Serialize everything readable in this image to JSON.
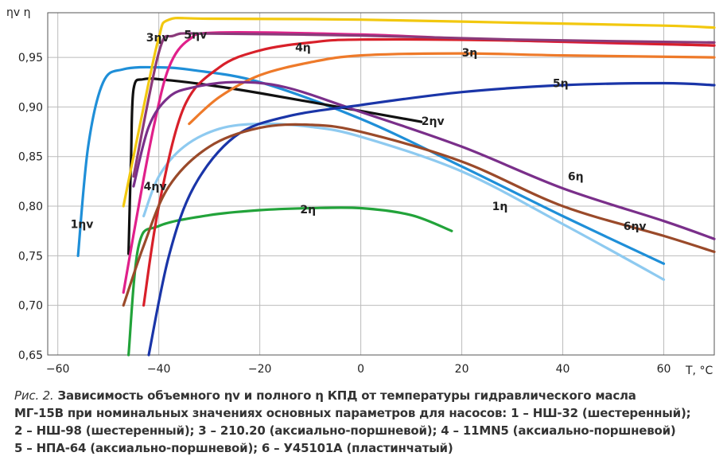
{
  "chart_data": {
    "type": "line",
    "ylabel": "ηv η",
    "xlabel": "T, °C",
    "xlim": [
      -62,
      70
    ],
    "ylim": [
      0.65,
      0.995
    ],
    "xticks": [
      -60,
      -40,
      -20,
      0,
      20,
      40,
      60
    ],
    "xtick_labels": [
      "−60",
      "−40",
      "−20",
      "0",
      "20",
      "40",
      "60"
    ],
    "yticks": [
      0.65,
      0.7,
      0.75,
      0.8,
      0.85,
      0.9,
      0.95
    ],
    "ytick_labels": [
      "0,65",
      "0,70",
      "0,75",
      "0,80",
      "0,85",
      "0,90",
      "0,95"
    ],
    "grid": true,
    "series": [
      {
        "name": "1ηv",
        "color": "#1f8fd8",
        "points": [
          [
            -56,
            0.75
          ],
          [
            -54,
            0.86
          ],
          [
            -51,
            0.925
          ],
          [
            -47,
            0.938
          ],
          [
            -40,
            0.94
          ],
          [
            -33,
            0.937
          ],
          [
            -20,
            0.925
          ],
          [
            0,
            0.888
          ],
          [
            20,
            0.84
          ],
          [
            40,
            0.79
          ],
          [
            60,
            0.742
          ]
        ]
      },
      {
        "name": "1η",
        "color": "#8ecaf0",
        "points": [
          [
            -43,
            0.79
          ],
          [
            -40,
            0.83
          ],
          [
            -35,
            0.86
          ],
          [
            -28,
            0.878
          ],
          [
            -20,
            0.883
          ],
          [
            -10,
            0.88
          ],
          [
            0,
            0.87
          ],
          [
            20,
            0.835
          ],
          [
            40,
            0.782
          ],
          [
            60,
            0.726
          ]
        ]
      },
      {
        "name": "2ηv",
        "color": "#111111",
        "points": [
          [
            -46,
            0.752
          ],
          [
            -45.5,
            0.85
          ],
          [
            -45,
            0.918
          ],
          [
            -43,
            0.928
          ],
          [
            -38,
            0.927
          ],
          [
            -30,
            0.922
          ],
          [
            -20,
            0.914
          ],
          [
            0,
            0.896
          ],
          [
            12,
            0.885
          ]
        ]
      },
      {
        "name": "2η",
        "color": "#22a33a",
        "points": [
          [
            -46,
            0.65
          ],
          [
            -44,
            0.76
          ],
          [
            -40,
            0.78
          ],
          [
            -30,
            0.791
          ],
          [
            -20,
            0.796
          ],
          [
            -10,
            0.798
          ],
          [
            0,
            0.798
          ],
          [
            10,
            0.791
          ],
          [
            18,
            0.775
          ]
        ]
      },
      {
        "name": "3ηv",
        "color": "#f2c80f",
        "points": [
          [
            -47,
            0.8
          ],
          [
            -43,
            0.9
          ],
          [
            -40,
            0.97
          ],
          [
            -38,
            0.988
          ],
          [
            -30,
            0.989
          ],
          [
            0,
            0.988
          ],
          [
            30,
            0.985
          ],
          [
            60,
            0.982
          ],
          [
            70,
            0.98
          ]
        ]
      },
      {
        "name": "3η",
        "color": "#ee7a2a",
        "points": [
          [
            -34,
            0.883
          ],
          [
            -28,
            0.91
          ],
          [
            -20,
            0.932
          ],
          [
            -10,
            0.945
          ],
          [
            0,
            0.952
          ],
          [
            20,
            0.954
          ],
          [
            40,
            0.952
          ],
          [
            70,
            0.95
          ]
        ]
      },
      {
        "name": "4ηv",
        "color": "#e0208a",
        "points": [
          [
            -47,
            0.713
          ],
          [
            -44,
            0.8
          ],
          [
            -41,
            0.88
          ],
          [
            -38,
            0.94
          ],
          [
            -34,
            0.968
          ],
          [
            -28,
            0.975
          ],
          [
            0,
            0.973
          ],
          [
            30,
            0.967
          ],
          [
            70,
            0.962
          ]
        ]
      },
      {
        "name": "4η",
        "color": "#d8202a",
        "points": [
          [
            -43,
            0.7
          ],
          [
            -40,
            0.8
          ],
          [
            -35,
            0.9
          ],
          [
            -28,
            0.94
          ],
          [
            -20,
            0.957
          ],
          [
            -10,
            0.965
          ],
          [
            0,
            0.968
          ],
          [
            30,
            0.967
          ],
          [
            70,
            0.962
          ]
        ]
      },
      {
        "name": "5ηv",
        "color": "#7a2f8a",
        "points": [
          [
            -45,
            0.82
          ],
          [
            -42,
            0.88
          ],
          [
            -38,
            0.91
          ],
          [
            -33,
            0.92
          ],
          [
            -25,
            0.925
          ],
          [
            -15,
            0.92
          ],
          [
            0,
            0.895
          ],
          [
            20,
            0.86
          ],
          [
            40,
            0.818
          ],
          [
            60,
            0.785
          ],
          [
            70,
            0.767
          ]
        ]
      },
      {
        "name": "5η",
        "color": "#1a35a8",
        "points": [
          [
            -42,
            0.65
          ],
          [
            -38,
            0.75
          ],
          [
            -33,
            0.82
          ],
          [
            -25,
            0.87
          ],
          [
            -15,
            0.89
          ],
          [
            0,
            0.902
          ],
          [
            20,
            0.915
          ],
          [
            40,
            0.922
          ],
          [
            60,
            0.924
          ],
          [
            70,
            0.922
          ]
        ]
      },
      {
        "name": "6ηv",
        "color": "#8a3a7a",
        "points": [
          [
            -45,
            0.83
          ],
          [
            -40,
            0.955
          ],
          [
            -37,
            0.972
          ],
          [
            -30,
            0.974
          ],
          [
            0,
            0.972
          ],
          [
            30,
            0.968
          ],
          [
            70,
            0.965
          ]
        ]
      },
      {
        "name": "6η",
        "color": "#9a4a2a",
        "points": [
          [
            -47,
            0.7
          ],
          [
            -43,
            0.76
          ],
          [
            -38,
            0.82
          ],
          [
            -30,
            0.86
          ],
          [
            -20,
            0.879
          ],
          [
            -10,
            0.882
          ],
          [
            0,
            0.875
          ],
          [
            20,
            0.845
          ],
          [
            40,
            0.8
          ],
          [
            60,
            0.77
          ],
          [
            70,
            0.754
          ]
        ]
      }
    ],
    "annotations": [
      {
        "text": "1ηv",
        "x": -57.5,
        "y": 0.782
      },
      {
        "text": "1η",
        "x": 26,
        "y": 0.8
      },
      {
        "text": "2ηv",
        "x": 12,
        "y": 0.886
      },
      {
        "text": "2η",
        "x": -12,
        "y": 0.797
      },
      {
        "text": "3ηv",
        "x": -42.5,
        "y": 0.97
      },
      {
        "text": "3η",
        "x": 20,
        "y": 0.955
      },
      {
        "text": "4ηv",
        "x": -43,
        "y": 0.82
      },
      {
        "text": "4η",
        "x": -13,
        "y": 0.96
      },
      {
        "text": "5ηv",
        "x": -35,
        "y": 0.973
      },
      {
        "text": "5η",
        "x": 38,
        "y": 0.924
      },
      {
        "text": "6η",
        "x": 41,
        "y": 0.83
      },
      {
        "text": "6ηv",
        "x": 52,
        "y": 0.78
      }
    ]
  },
  "caption": {
    "figure_label": "Рис. 2.",
    "line1": "Зависимость объемного ηv и полного η КПД от температуры гидравлического масла",
    "line2": "МГ-15В при номинальных значениях основных параметров для насосов: 1 – НШ-32 (шестеренный);",
    "line3": "2 – НШ-98 (шестеренный); 3 – 210.20 (аксиально-поршневой); 4 – 11МN5 (аксиально-поршневой)",
    "line4": "5 – НПА-64 (аксиально-поршневой); 6 – У45101А (пластинчатый)"
  }
}
